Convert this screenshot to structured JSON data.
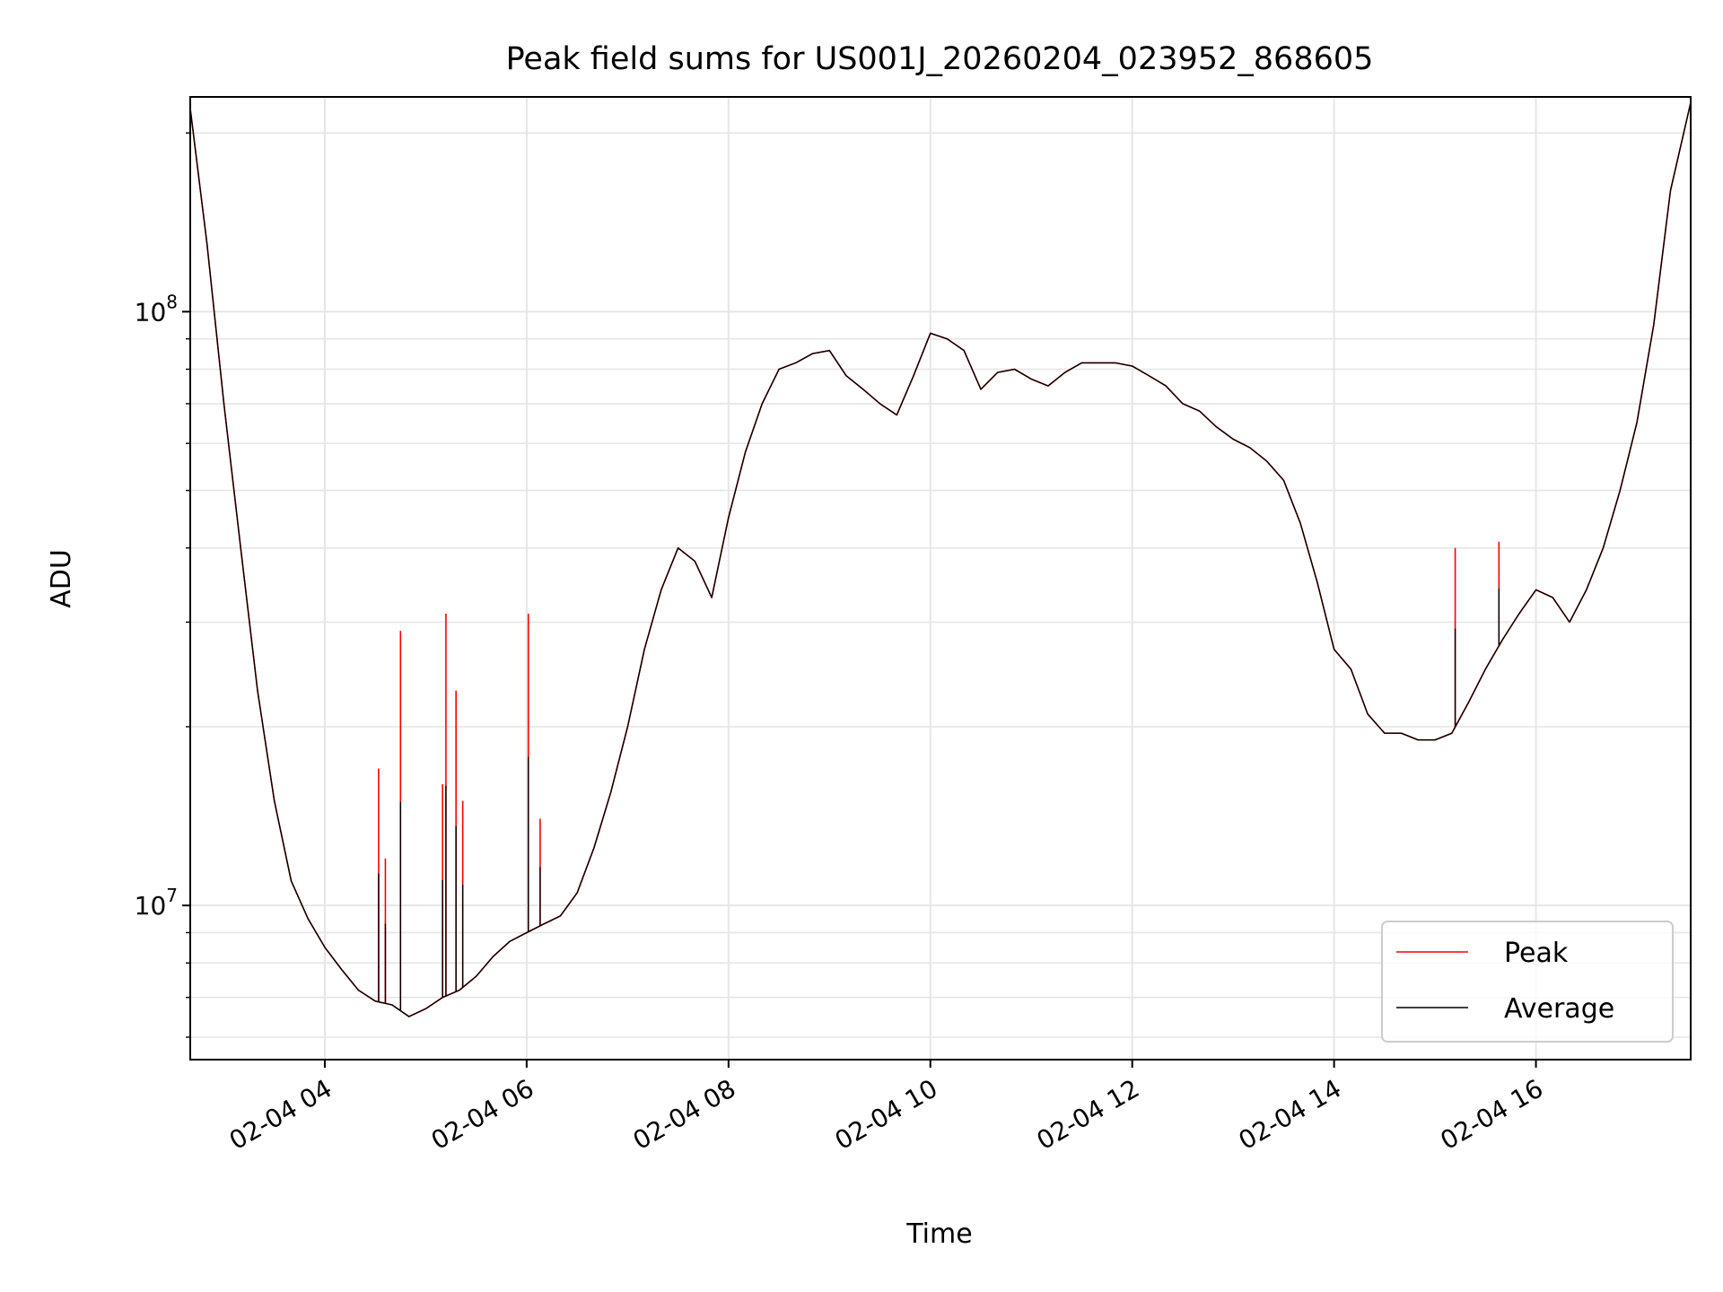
{
  "chart_data": {
    "type": "line",
    "title": "Peak field sums for US001J_20260204_023952_868605",
    "xlabel": "Time",
    "ylabel": "ADU",
    "y_scale": "log",
    "ylim": [
      5500000,
      230000000
    ],
    "xlim": [
      "2026-02-04 02:40",
      "2026-02-04 17:32"
    ],
    "grid": true,
    "legend_position": "lower-right",
    "x_tick_labels": [
      "02-04 04",
      "02-04 06",
      "02-04 08",
      "02-04 10",
      "02-04 12",
      "02-04 14",
      "02-04 16"
    ],
    "y_tick_labels": [
      {
        "base": "10",
        "exp": "8",
        "value": 100000000
      },
      {
        "base": "10",
        "exp": "7",
        "value": 10000000
      }
    ],
    "colors": {
      "peak": "#ff0000",
      "average": "#000000",
      "grid": "#e6e6e6"
    },
    "x": [
      "02:40",
      "02:50",
      "03:00",
      "03:10",
      "03:20",
      "03:30",
      "03:40",
      "03:50",
      "04:00",
      "04:10",
      "04:20",
      "04:30",
      "04:40",
      "04:50",
      "05:00",
      "05:10",
      "05:20",
      "05:30",
      "05:40",
      "05:50",
      "06:00",
      "06:10",
      "06:20",
      "06:30",
      "06:40",
      "06:50",
      "07:00",
      "07:10",
      "07:20",
      "07:30",
      "07:40",
      "07:50",
      "08:00",
      "08:10",
      "08:20",
      "08:30",
      "08:40",
      "08:50",
      "09:00",
      "09:10",
      "09:20",
      "09:30",
      "09:40",
      "09:50",
      "10:00",
      "10:10",
      "10:20",
      "10:30",
      "10:40",
      "10:50",
      "11:00",
      "11:10",
      "11:20",
      "11:30",
      "11:40",
      "11:50",
      "12:00",
      "12:10",
      "12:20",
      "12:30",
      "12:40",
      "12:50",
      "13:00",
      "13:10",
      "13:20",
      "13:30",
      "13:40",
      "13:50",
      "14:00",
      "14:10",
      "14:20",
      "14:30",
      "14:40",
      "14:50",
      "15:00",
      "15:10",
      "15:20",
      "15:30",
      "15:40",
      "15:50",
      "16:00",
      "16:10",
      "16:20",
      "16:30",
      "16:40",
      "16:50",
      "17:00",
      "17:10",
      "17:20",
      "17:32"
    ],
    "series": [
      {
        "name": "Average",
        "values": [
          220000000,
          130000000,
          70000000,
          40000000,
          23000000,
          15000000,
          11000000,
          9500000,
          8500000,
          7800000,
          7200000,
          6900000,
          6800000,
          6500000,
          6700000,
          7000000,
          7200000,
          7600000,
          8200000,
          8700000,
          9000000,
          9300000,
          9600000,
          10500000,
          12500000,
          15500000,
          20000000,
          27000000,
          34000000,
          40000000,
          38000000,
          33000000,
          45000000,
          58000000,
          70000000,
          80000000,
          82000000,
          85000000,
          86000000,
          78000000,
          74000000,
          70000000,
          67000000,
          78000000,
          92000000,
          90000000,
          86000000,
          74000000,
          79000000,
          80000000,
          77000000,
          75000000,
          79000000,
          82000000,
          82000000,
          82000000,
          81000000,
          78000000,
          75000000,
          70000000,
          68000000,
          64000000,
          61000000,
          59000000,
          56000000,
          52000000,
          44000000,
          35000000,
          27000000,
          25000000,
          21000000,
          19500000,
          19500000,
          19000000,
          19000000,
          19500000,
          22000000,
          25000000,
          28000000,
          31000000,
          34000000,
          33000000,
          30000000,
          34000000,
          40000000,
          50000000,
          65000000,
          95000000,
          160000000,
          225000000
        ]
      },
      {
        "name": "Peak",
        "values": [
          220000000,
          130000000,
          70000000,
          40000000,
          23000000,
          15000000,
          11000000,
          9500000,
          8500000,
          7800000,
          7200000,
          6900000,
          6800000,
          6500000,
          6700000,
          7000000,
          7200000,
          7600000,
          8200000,
          8700000,
          9000000,
          9300000,
          9600000,
          10500000,
          12500000,
          15500000,
          20000000,
          27000000,
          34000000,
          40000000,
          38000000,
          33000000,
          45000000,
          58000000,
          70000000,
          80000000,
          82000000,
          85000000,
          86000000,
          78000000,
          74000000,
          70000000,
          67000000,
          78000000,
          92000000,
          90000000,
          86000000,
          74000000,
          79000000,
          80000000,
          77000000,
          75000000,
          79000000,
          82000000,
          82000000,
          82000000,
          81000000,
          78000000,
          75000000,
          70000000,
          68000000,
          64000000,
          61000000,
          59000000,
          56000000,
          52000000,
          44000000,
          35000000,
          27000000,
          25000000,
          21000000,
          19500000,
          19500000,
          19000000,
          19000000,
          19500000,
          22000000,
          25000000,
          28000000,
          31000000,
          34000000,
          33000000,
          30000000,
          34000000,
          40000000,
          50000000,
          65000000,
          95000000,
          160000000,
          225000000
        ],
        "spikes": [
          {
            "x": "04:32",
            "value": 17000000
          },
          {
            "x": "04:36",
            "value": 12000000
          },
          {
            "x": "04:45",
            "value": 29000000
          },
          {
            "x": "05:10",
            "value": 16000000
          },
          {
            "x": "05:12",
            "value": 31000000
          },
          {
            "x": "05:18",
            "value": 23000000
          },
          {
            "x": "05:22",
            "value": 15000000
          },
          {
            "x": "06:01",
            "value": 31000000
          },
          {
            "x": "06:08",
            "value": 14000000
          },
          {
            "x": "15:12",
            "value": 40000000
          },
          {
            "x": "15:38",
            "value": 41000000
          }
        ]
      }
    ]
  }
}
